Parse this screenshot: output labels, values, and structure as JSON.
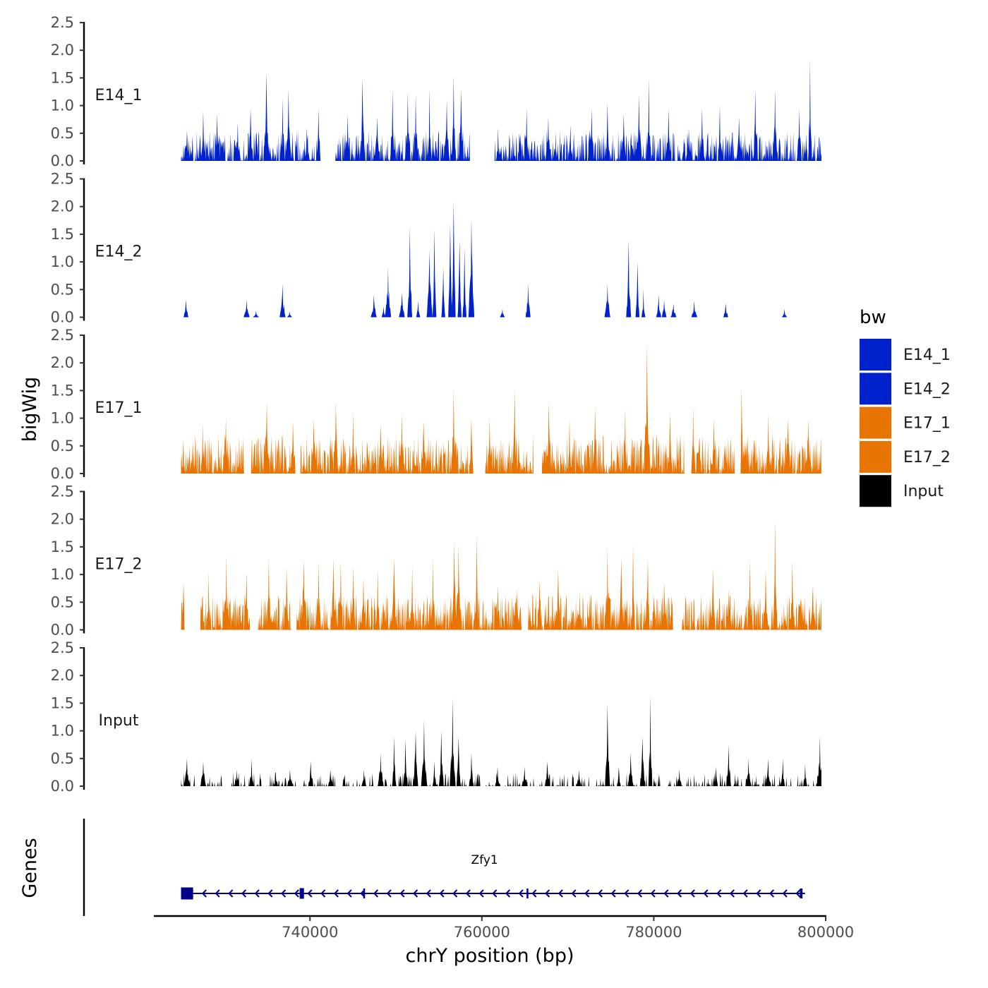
{
  "chart_data": {
    "type": "area",
    "chromosome": "chrY",
    "y_axis_title": "bigWig",
    "x_axis_title": "chrY position (bp)",
    "genes_axis_title": "Genes",
    "xlim": [
      722000,
      800000
    ],
    "data_xrange": [
      725000,
      799500
    ],
    "x_ticks": [
      740000,
      760000,
      780000,
      800000
    ],
    "x_tick_labels": [
      "740000",
      "760000",
      "780000",
      "800000"
    ],
    "ylim": [
      0,
      2.5
    ],
    "y_ticks": [
      0.0,
      0.5,
      1.0,
      1.5,
      2.0,
      2.5
    ],
    "y_tick_labels": [
      "0.0",
      "0.5",
      "1.0",
      "1.5",
      "2.0",
      "2.5"
    ],
    "legend": {
      "title": "bw",
      "items": [
        {
          "label": "E14_1",
          "color": "#0022CC"
        },
        {
          "label": "E14_2",
          "color": "#0022CC"
        },
        {
          "label": "E17_1",
          "color": "#E87404"
        },
        {
          "label": "E17_2",
          "color": "#E87404"
        },
        {
          "label": "Input",
          "color": "#000000"
        }
      ]
    },
    "series": [
      {
        "name": "E14_1",
        "color": "#0022CC",
        "baseline_density": 0.78,
        "baseline_max": 0.55,
        "gaps": [
          [
            741200,
            743000
          ],
          [
            758600,
            761500
          ]
        ],
        "peaks": [
          [
            725700,
            0.55
          ],
          [
            727600,
            0.9
          ],
          [
            729200,
            0.85
          ],
          [
            731600,
            0.7
          ],
          [
            733100,
            0.95
          ],
          [
            734900,
            1.6
          ],
          [
            736800,
            1.15
          ],
          [
            737500,
            1.3
          ],
          [
            739600,
            0.6
          ],
          [
            741000,
            0.95
          ],
          [
            744400,
            0.85
          ],
          [
            746100,
            1.5
          ],
          [
            747800,
            0.8
          ],
          [
            749600,
            1.3
          ],
          [
            751400,
            1.25
          ],
          [
            752300,
            1.2
          ],
          [
            753900,
            1.3
          ],
          [
            755900,
            1.1
          ],
          [
            756700,
            1.55
          ],
          [
            757600,
            1.3
          ],
          [
            761900,
            0.6
          ],
          [
            765200,
            0.95
          ],
          [
            767700,
            0.8
          ],
          [
            770300,
            0.65
          ],
          [
            772800,
            0.95
          ],
          [
            774600,
            1.05
          ],
          [
            776500,
            0.85
          ],
          [
            778300,
            1.2
          ],
          [
            779400,
            1.5
          ],
          [
            781700,
            0.95
          ],
          [
            784100,
            0.6
          ],
          [
            785600,
            0.95
          ],
          [
            787700,
            1.0
          ],
          [
            789900,
            0.8
          ],
          [
            791800,
            1.3
          ],
          [
            794100,
            1.3
          ],
          [
            796900,
            0.95
          ],
          [
            798200,
            1.85
          ]
        ]
      },
      {
        "name": "E14_2",
        "color": "#0022CC",
        "baseline_density": 0.0,
        "baseline_max": 0.0,
        "gaps": [],
        "peaks": [
          [
            725600,
            0.32
          ],
          [
            732600,
            0.32
          ],
          [
            733700,
            0.12
          ],
          [
            736800,
            0.6
          ],
          [
            737600,
            0.1
          ],
          [
            747400,
            0.4
          ],
          [
            748600,
            0.2
          ],
          [
            749100,
            0.9
          ],
          [
            750700,
            0.45
          ],
          [
            751600,
            1.65
          ],
          [
            752600,
            0.3
          ],
          [
            753900,
            1.2
          ],
          [
            754500,
            1.6
          ],
          [
            755500,
            0.9
          ],
          [
            756300,
            1.7
          ],
          [
            756700,
            2.1
          ],
          [
            757400,
            1.4
          ],
          [
            758000,
            1.25
          ],
          [
            758800,
            1.78
          ],
          [
            762400,
            0.15
          ],
          [
            765400,
            0.6
          ],
          [
            774600,
            0.6
          ],
          [
            777100,
            1.4
          ],
          [
            778100,
            1.0
          ],
          [
            778800,
            0.5
          ],
          [
            780600,
            0.4
          ],
          [
            781200,
            0.3
          ],
          [
            782300,
            0.25
          ],
          [
            784700,
            0.3
          ],
          [
            788400,
            0.25
          ],
          [
            795200,
            0.15
          ]
        ]
      },
      {
        "name": "E17_1",
        "color": "#E87404",
        "baseline_density": 0.95,
        "baseline_max": 0.7,
        "gaps": [
          [
            732300,
            733200
          ],
          [
            738300,
            738900
          ],
          [
            759000,
            760400
          ],
          [
            766000,
            767000
          ],
          [
            783600,
            784400
          ],
          [
            789400,
            790100
          ]
        ],
        "peaks": [
          [
            727500,
            0.9
          ],
          [
            730200,
            1.0
          ],
          [
            735000,
            1.3
          ],
          [
            738000,
            0.95
          ],
          [
            740400,
            1.0
          ],
          [
            743000,
            1.3
          ],
          [
            745000,
            1.1
          ],
          [
            748200,
            0.9
          ],
          [
            750700,
            1.1
          ],
          [
            753200,
            0.95
          ],
          [
            756700,
            1.55
          ],
          [
            758800,
            1.0
          ],
          [
            760900,
            1.0
          ],
          [
            763800,
            1.55
          ],
          [
            767800,
            1.3
          ],
          [
            770200,
            1.0
          ],
          [
            773200,
            1.2
          ],
          [
            776700,
            1.2
          ],
          [
            779200,
            2.35
          ],
          [
            781900,
            1.1
          ],
          [
            784600,
            1.2
          ],
          [
            787000,
            1.0
          ],
          [
            790200,
            1.55
          ],
          [
            793300,
            1.1
          ],
          [
            795600,
            1.0
          ],
          [
            798000,
            1.0
          ]
        ]
      },
      {
        "name": "E17_2",
        "color": "#E87404",
        "baseline_density": 0.9,
        "baseline_max": 0.65,
        "gaps": [
          [
            725400,
            727100
          ],
          [
            733000,
            734000
          ],
          [
            737800,
            738400
          ],
          [
            764600,
            765400
          ],
          [
            782200,
            783300
          ]
        ],
        "peaks": [
          [
            725300,
            0.85
          ],
          [
            728200,
            1.05
          ],
          [
            730300,
            1.35
          ],
          [
            732600,
            1.05
          ],
          [
            735200,
            1.3
          ],
          [
            737300,
            1.15
          ],
          [
            739300,
            1.3
          ],
          [
            741000,
            1.25
          ],
          [
            742700,
            1.3
          ],
          [
            743600,
            1.25
          ],
          [
            745000,
            1.15
          ],
          [
            746200,
            0.95
          ],
          [
            747900,
            1.1
          ],
          [
            749800,
            1.3
          ],
          [
            751900,
            1.15
          ],
          [
            754300,
            1.3
          ],
          [
            756800,
            1.6
          ],
          [
            757300,
            1.55
          ],
          [
            759400,
            1.7
          ],
          [
            761900,
            0.8
          ],
          [
            764100,
            0.75
          ],
          [
            766700,
            0.9
          ],
          [
            768900,
            1.1
          ],
          [
            771400,
            0.7
          ],
          [
            774600,
            1.5
          ],
          [
            776200,
            1.3
          ],
          [
            777600,
            1.55
          ],
          [
            779300,
            1.3
          ],
          [
            781200,
            0.85
          ],
          [
            786900,
            1.1
          ],
          [
            788700,
            0.75
          ],
          [
            791200,
            1.3
          ],
          [
            793000,
            1.1
          ],
          [
            794100,
            2.0
          ],
          [
            796100,
            1.25
          ],
          [
            798500,
            0.8
          ]
        ]
      },
      {
        "name": "Input",
        "color": "#000000",
        "baseline_density": 0.35,
        "baseline_max": 0.25,
        "gaps": [
          [
            730100,
            730700
          ],
          [
            734300,
            734900
          ],
          [
            738400,
            739200
          ],
          [
            743000,
            743800
          ],
          [
            760000,
            760500
          ],
          [
            772600,
            773300
          ],
          [
            781000,
            781600
          ]
        ],
        "peaks": [
          [
            725700,
            0.5
          ],
          [
            727600,
            0.45
          ],
          [
            731500,
            0.3
          ],
          [
            733200,
            0.5
          ],
          [
            736000,
            0.25
          ],
          [
            737700,
            0.3
          ],
          [
            740100,
            0.45
          ],
          [
            742400,
            0.3
          ],
          [
            746300,
            0.3
          ],
          [
            748200,
            0.6
          ],
          [
            749800,
            0.9
          ],
          [
            751100,
            0.85
          ],
          [
            752300,
            1.0
          ],
          [
            753300,
            1.2
          ],
          [
            754500,
            0.45
          ],
          [
            755300,
            1.0
          ],
          [
            756600,
            1.6
          ],
          [
            757300,
            0.9
          ],
          [
            758800,
            0.6
          ],
          [
            761800,
            0.35
          ],
          [
            765000,
            0.35
          ],
          [
            767600,
            0.45
          ],
          [
            771300,
            0.3
          ],
          [
            774600,
            1.5
          ],
          [
            775900,
            0.35
          ],
          [
            777300,
            0.6
          ],
          [
            778700,
            0.9
          ],
          [
            779600,
            1.65
          ],
          [
            783000,
            0.3
          ],
          [
            787200,
            0.35
          ],
          [
            788700,
            0.75
          ],
          [
            791000,
            0.5
          ],
          [
            793300,
            0.5
          ],
          [
            795000,
            0.5
          ],
          [
            797600,
            0.4
          ],
          [
            799300,
            0.9
          ]
        ]
      }
    ],
    "gene": {
      "name": "Zfy1",
      "start": 725000,
      "end": 797600,
      "strand": "-",
      "color": "#00008B",
      "exons": [
        [
          725000,
          726400
        ],
        [
          738800,
          739300
        ],
        [
          746200,
          746400
        ],
        [
          765200,
          765400
        ],
        [
          797000,
          797300
        ]
      ]
    }
  }
}
